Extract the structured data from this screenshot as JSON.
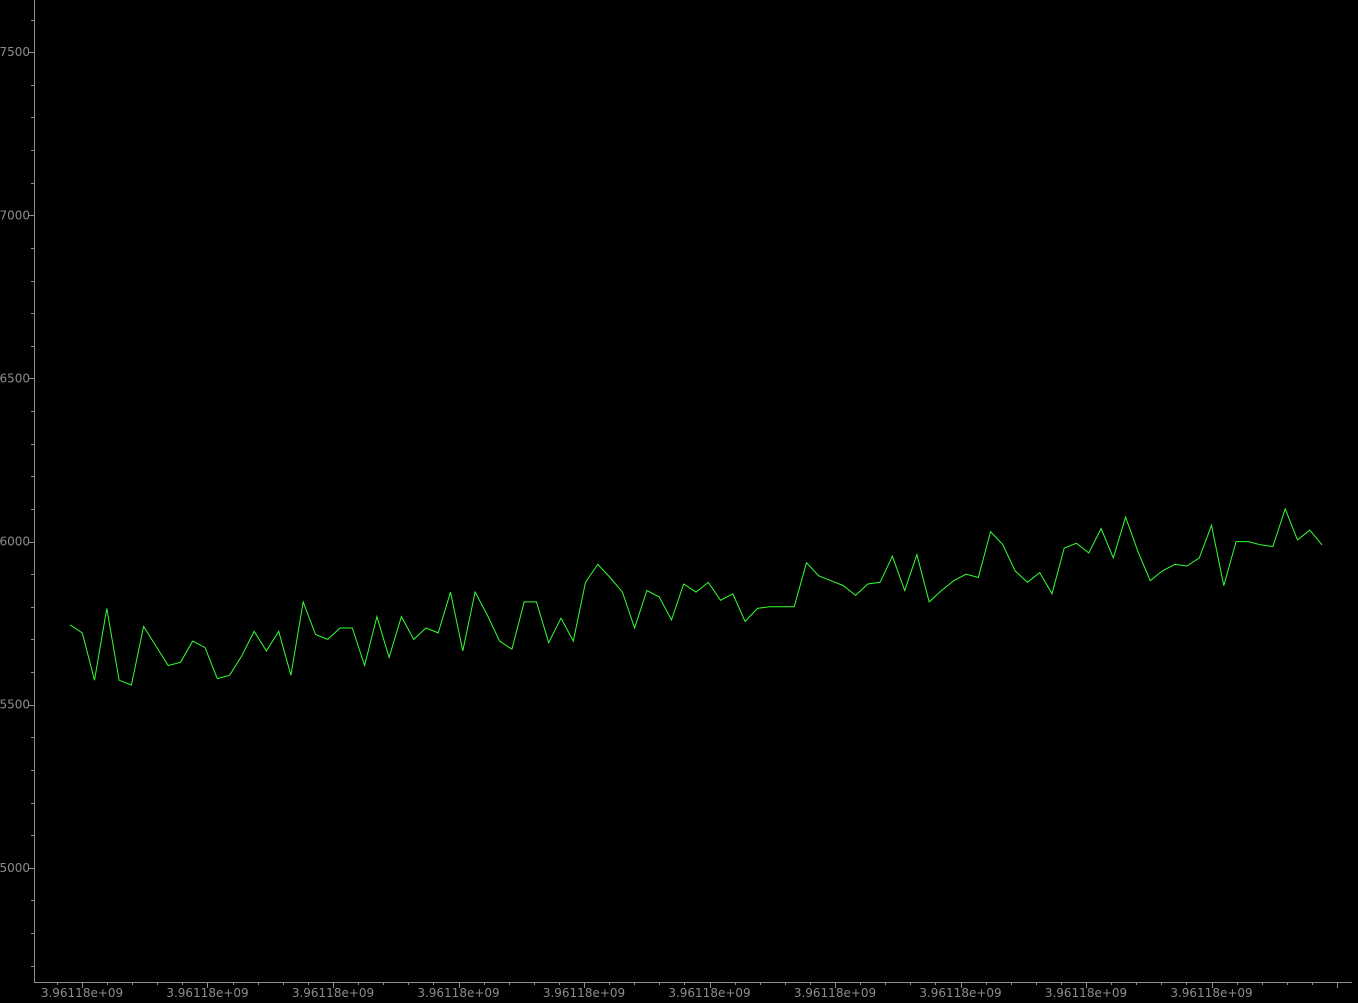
{
  "chart_data": {
    "type": "line",
    "title": "",
    "xlabel": "",
    "ylabel": "",
    "grid": false,
    "legend": "none",
    "background_color": "#000000",
    "axis_color": "#8c8c8c",
    "series_color": "#33ff33",
    "x_axis": {
      "tick_labels": [
        "3.96118e+09",
        "3.96118e+09",
        "3.96118e+09",
        "3.96118e+09",
        "3.96118e+09",
        "3.96118e+09",
        "3.96118e+09",
        "3.96118e+09",
        "3.96118e+09",
        "3.96118e+09"
      ],
      "minor_ticks_per_major": 5
    },
    "y_axis": {
      "range": [
        4650,
        7660
      ],
      "ticks": [
        5000,
        5500,
        6000,
        6500,
        7000,
        7500
      ],
      "minor_step": 100
    },
    "series": [
      {
        "values": [
          5745,
          5720,
          5575,
          5795,
          5575,
          5560,
          5740,
          5680,
          5620,
          5630,
          5695,
          5675,
          5580,
          5590,
          5650,
          5725,
          5665,
          5725,
          5590,
          5815,
          5715,
          5700,
          5735,
          5735,
          5620,
          5770,
          5645,
          5770,
          5700,
          5735,
          5720,
          5845,
          5665,
          5845,
          5775,
          5695,
          5670,
          5815,
          5815,
          5690,
          5765,
          5695,
          5875,
          5930,
          5890,
          5845,
          5735,
          5850,
          5830,
          5760,
          5870,
          5845,
          5875,
          5820,
          5840,
          5755,
          5795,
          5800,
          5800,
          5800,
          5935,
          5895,
          5880,
          5865,
          5835,
          5870,
          5875,
          5955,
          5850,
          5960,
          5815,
          5850,
          5880,
          5900,
          5890,
          6030,
          5990,
          5910,
          5875,
          5905,
          5840,
          5980,
          5995,
          5965,
          6040,
          5950,
          6075,
          5970,
          5880,
          5910,
          5930,
          5925,
          5950,
          6050,
          5865,
          6000,
          6000,
          5990,
          5985,
          6100,
          6005,
          6035,
          5990
        ]
      }
    ]
  }
}
